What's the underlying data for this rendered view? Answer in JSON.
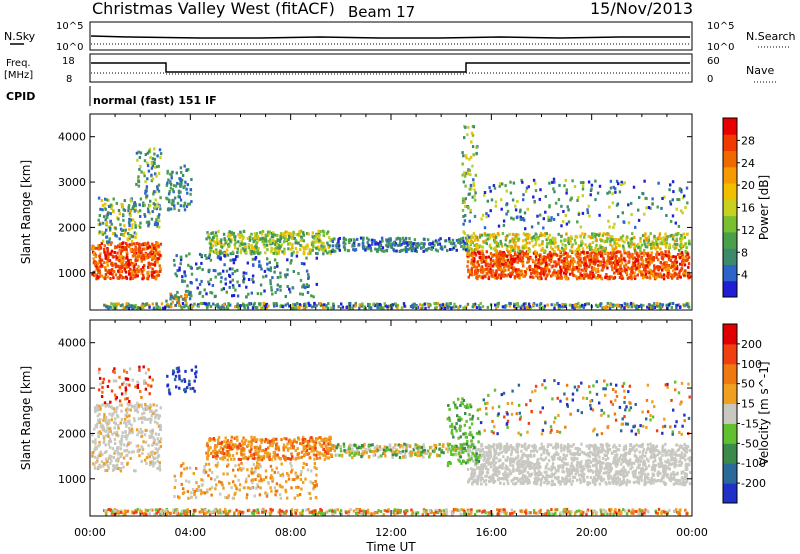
{
  "header": {
    "title": "Christmas Valley West (fitACF)",
    "beam": "Beam 17",
    "date": "15/Nov/2013"
  },
  "strips": {
    "nsky_label": "N.Sky",
    "nsearch_label": "N.Search",
    "nsky_ticks": [
      "10^5",
      "10^0"
    ],
    "nsearch_ticks": [
      "10^5",
      "10^0"
    ],
    "freq_label_line1": "Freq.",
    "freq_label_line2": "[MHz]",
    "freq_ticks": [
      "18",
      "8"
    ],
    "nave_label": "Nave",
    "nave_ticks": [
      "60",
      "0"
    ],
    "cpid_label": "CPID",
    "cpid_text": "normal (fast) 151 IF"
  },
  "chart_data": [
    {
      "type": "heatmap",
      "title": "",
      "ylabel": "Slant Range [km]",
      "xlabel": "",
      "ylim": [
        180,
        4500
      ],
      "yticks": [
        "1000",
        "2000",
        "3000",
        "4000"
      ],
      "colorbar": {
        "label": "Power [dB]",
        "ticks": [
          "28",
          "24",
          "20",
          "16",
          "12",
          "8",
          "4"
        ],
        "colors": [
          "#1f1fd6",
          "#2c64c9",
          "#3c8a6c",
          "#4aa04a",
          "#78c030",
          "#c8d020",
          "#f0c000",
          "#f59a00",
          "#f06800",
          "#f03a00",
          "#e80000"
        ]
      }
    },
    {
      "type": "heatmap",
      "title": "",
      "ylabel": "Slant Range [km]",
      "xlabel": "Time UT",
      "ylim": [
        180,
        4500
      ],
      "yticks": [
        "1000",
        "2000",
        "3000",
        "4000"
      ],
      "xticks": [
        "00:00",
        "04:00",
        "08:00",
        "12:00",
        "16:00",
        "20:00",
        "00:00"
      ],
      "colorbar": {
        "label": "Velocity [m s^-1]",
        "ticks": [
          "200",
          "100",
          "50",
          "15",
          "-15",
          "-50",
          "-100",
          "-200"
        ],
        "colors": [
          "#2030c8",
          "#2a6a9a",
          "#3a8a4a",
          "#60c030",
          "#c8c8c0",
          "#f0a020",
          "#f07810",
          "#f04010",
          "#e00000"
        ]
      }
    }
  ]
}
